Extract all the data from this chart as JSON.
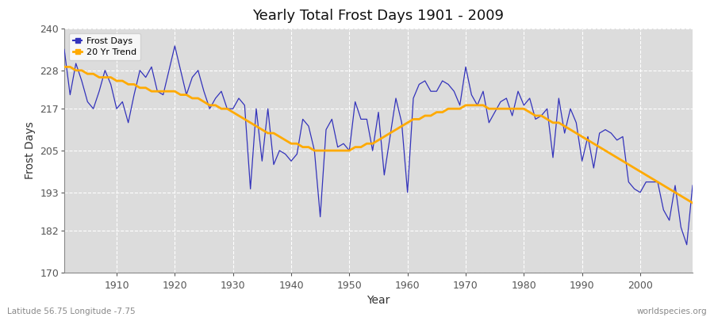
{
  "title": "Yearly Total Frost Days 1901 - 2009",
  "xlabel": "Year",
  "ylabel": "Frost Days",
  "footnote_left": "Latitude 56.75 Longitude -7.75",
  "footnote_right": "worldspecies.org",
  "ylim": [
    170,
    240
  ],
  "yticks": [
    170,
    182,
    193,
    205,
    217,
    228,
    240
  ],
  "xlim": [
    1901,
    2009
  ],
  "xticks": [
    1910,
    1920,
    1930,
    1940,
    1950,
    1960,
    1970,
    1980,
    1990,
    2000
  ],
  "line_color": "#3333bb",
  "trend_color": "#ffaa00",
  "fig_bg_color": "#ffffff",
  "plot_bg_color": "#dcdcdc",
  "years": [
    1901,
    1902,
    1903,
    1904,
    1905,
    1906,
    1907,
    1908,
    1909,
    1910,
    1911,
    1912,
    1913,
    1914,
    1915,
    1916,
    1917,
    1918,
    1919,
    1920,
    1921,
    1922,
    1923,
    1924,
    1925,
    1926,
    1927,
    1928,
    1929,
    1930,
    1931,
    1932,
    1933,
    1934,
    1935,
    1936,
    1937,
    1938,
    1939,
    1940,
    1941,
    1942,
    1943,
    1944,
    1945,
    1946,
    1947,
    1948,
    1949,
    1950,
    1951,
    1952,
    1953,
    1954,
    1955,
    1956,
    1957,
    1958,
    1959,
    1960,
    1961,
    1962,
    1963,
    1964,
    1965,
    1966,
    1967,
    1968,
    1969,
    1970,
    1971,
    1972,
    1973,
    1974,
    1975,
    1976,
    1977,
    1978,
    1979,
    1980,
    1981,
    1982,
    1983,
    1984,
    1985,
    1986,
    1987,
    1988,
    1989,
    1990,
    1991,
    1992,
    1993,
    1994,
    1995,
    1996,
    1997,
    1998,
    1999,
    2000,
    2001,
    2002,
    2003,
    2004,
    2005,
    2006,
    2007,
    2008,
    2009
  ],
  "frost_days": [
    234,
    221,
    230,
    225,
    219,
    217,
    222,
    228,
    224,
    217,
    219,
    213,
    221,
    228,
    226,
    229,
    222,
    221,
    228,
    235,
    228,
    221,
    226,
    228,
    222,
    217,
    220,
    222,
    217,
    217,
    220,
    218,
    194,
    217,
    202,
    217,
    201,
    205,
    204,
    202,
    204,
    214,
    212,
    205,
    186,
    211,
    214,
    206,
    207,
    205,
    219,
    214,
    214,
    205,
    216,
    198,
    209,
    220,
    213,
    193,
    220,
    224,
    225,
    222,
    222,
    225,
    224,
    222,
    218,
    229,
    221,
    218,
    222,
    213,
    216,
    219,
    220,
    215,
    222,
    218,
    220,
    214,
    215,
    217,
    203,
    220,
    210,
    217,
    213,
    202,
    209,
    200,
    210,
    211,
    210,
    208,
    209,
    196,
    194,
    193,
    196,
    196,
    196,
    188,
    185,
    195,
    183,
    178,
    195
  ],
  "trend_values": [
    229,
    229,
    228,
    228,
    227,
    227,
    226,
    226,
    226,
    225,
    225,
    224,
    224,
    223,
    223,
    222,
    222,
    222,
    222,
    222,
    221,
    221,
    220,
    220,
    219,
    218,
    218,
    217,
    217,
    216,
    215,
    214,
    213,
    212,
    211,
    210,
    210,
    209,
    208,
    207,
    207,
    206,
    206,
    205,
    205,
    205,
    205,
    205,
    205,
    205,
    206,
    206,
    207,
    207,
    208,
    209,
    210,
    211,
    212,
    213,
    214,
    214,
    215,
    215,
    216,
    216,
    217,
    217,
    217,
    218,
    218,
    218,
    218,
    217,
    217,
    217,
    217,
    217,
    217,
    217,
    216,
    215,
    215,
    214,
    213,
    213,
    212,
    211,
    210,
    209,
    208,
    207,
    206,
    205,
    204,
    203,
    202,
    201,
    200,
    199,
    198,
    197,
    196,
    195,
    194,
    193,
    192,
    191,
    190
  ]
}
